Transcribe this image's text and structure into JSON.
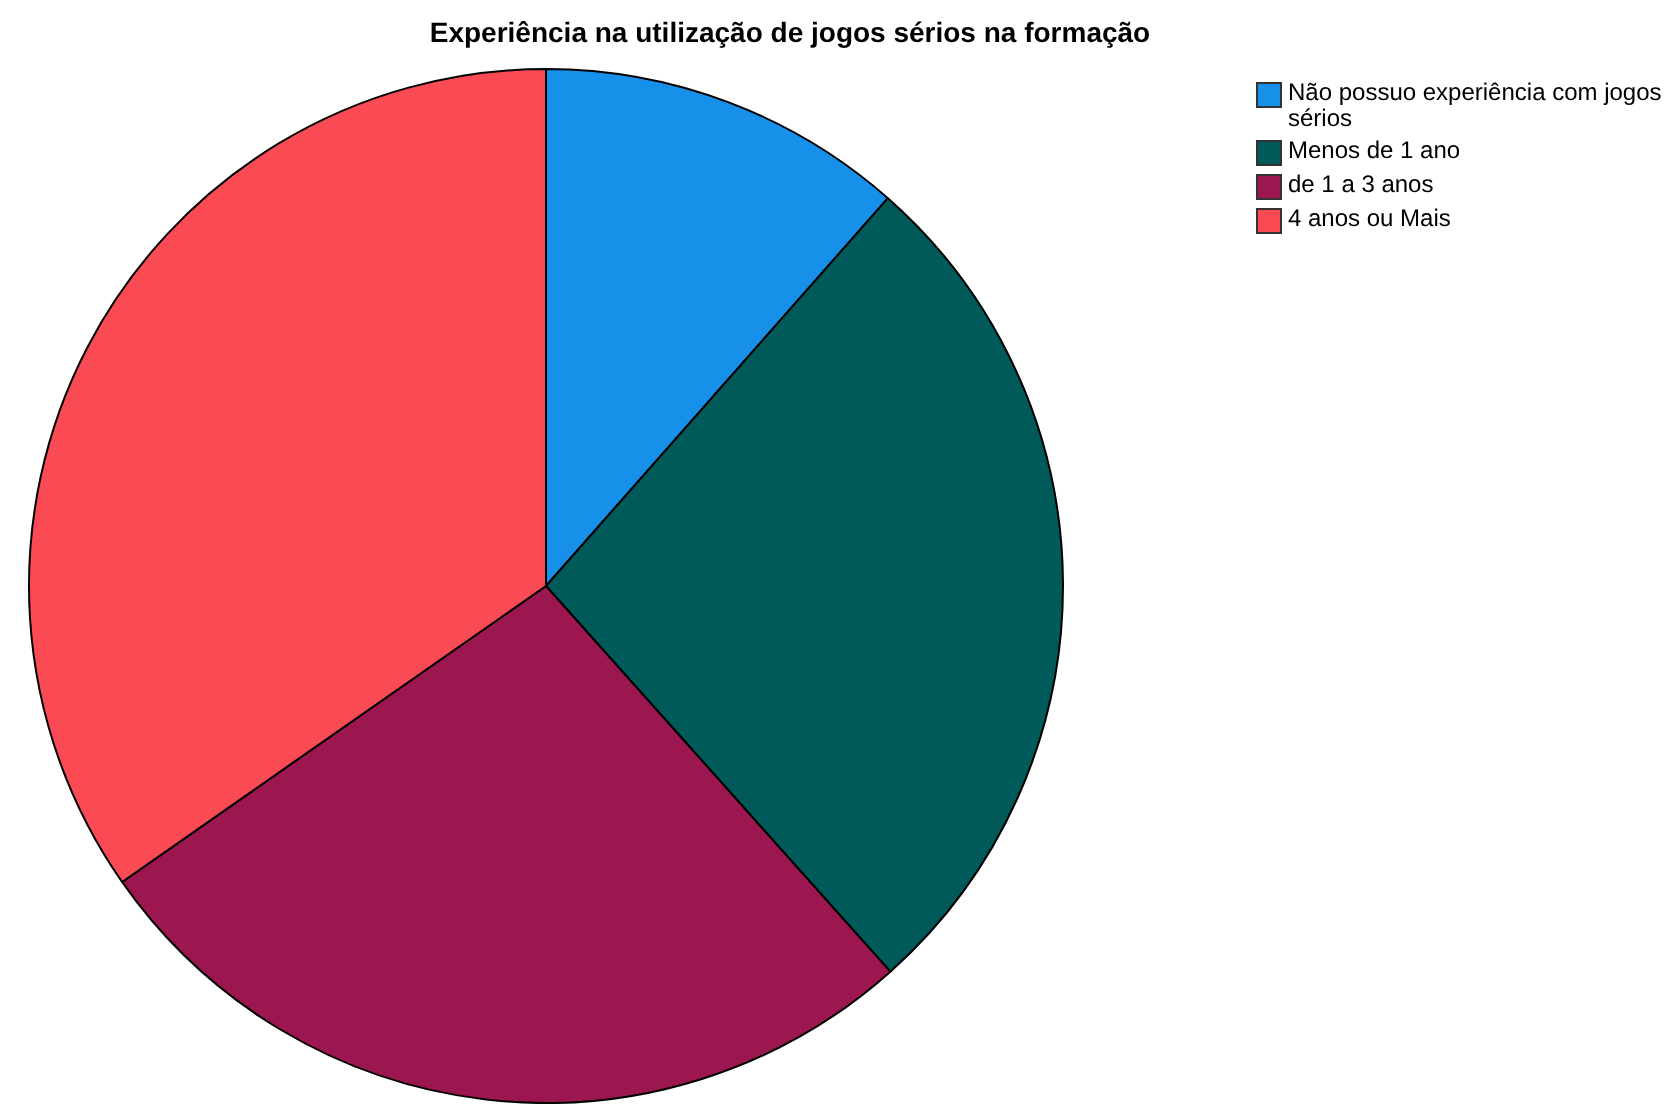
{
  "chart_data": {
    "type": "pie",
    "title": "Experiência na utilização de jogos sérios na formação",
    "categories": [
      "Não possuo experiência com jogos sérios",
      "Menos de 1 ano",
      "de 1 a 3 anos",
      "4 anos ou Mais"
    ],
    "values": [
      11.5,
      26.9,
      26.9,
      34.7
    ],
    "colors": [
      "#1690e8",
      "#005a5a",
      "#9c1650",
      "#fa4b55"
    ],
    "legend": "top right"
  }
}
